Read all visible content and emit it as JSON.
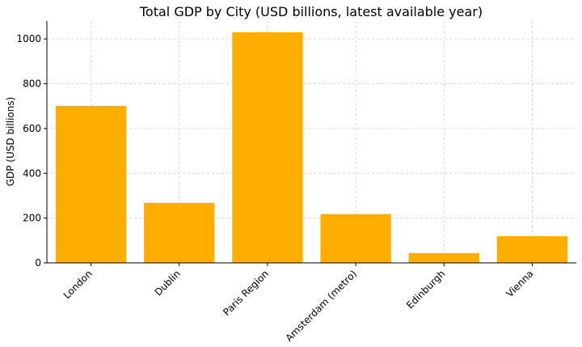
{
  "chart_data": {
    "type": "bar",
    "title": "Total GDP by City (USD billions, latest available year)",
    "xlabel": "",
    "ylabel": "GDP (USD billions)",
    "categories": [
      "London",
      "Dublin",
      "Paris Region",
      "Amsterdam (metro)",
      "Edinburgh",
      "Vienna"
    ],
    "values": [
      701,
      268,
      1030,
      218,
      44,
      119
    ],
    "ylim": [
      0,
      1080
    ],
    "yticks": [
      0,
      200,
      400,
      600,
      800,
      1000
    ],
    "grid": true,
    "bar_color": "#FFAE00",
    "grid_color": "#cccccc"
  }
}
